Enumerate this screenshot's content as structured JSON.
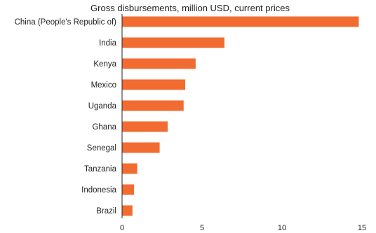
{
  "chart_data": {
    "type": "bar",
    "orientation": "horizontal",
    "title": "Gross disbursements, million USD, current prices",
    "xlabel": "",
    "ylabel": "",
    "categories": [
      "China (People's Republic of)",
      "India",
      "Kenya",
      "Mexico",
      "Uganda",
      "Ghana",
      "Senegal",
      "Tanzania",
      "Indonesia",
      "Brazil"
    ],
    "values": [
      14.8,
      6.4,
      4.6,
      3.95,
      3.85,
      2.85,
      2.35,
      0.95,
      0.75,
      0.65
    ],
    "xlim": [
      0,
      15
    ],
    "xticks": [
      "0",
      "5",
      "10",
      "15"
    ],
    "xtick_values": [
      0,
      5,
      10,
      15
    ],
    "grid": false,
    "bar_color": "#f26c32"
  }
}
